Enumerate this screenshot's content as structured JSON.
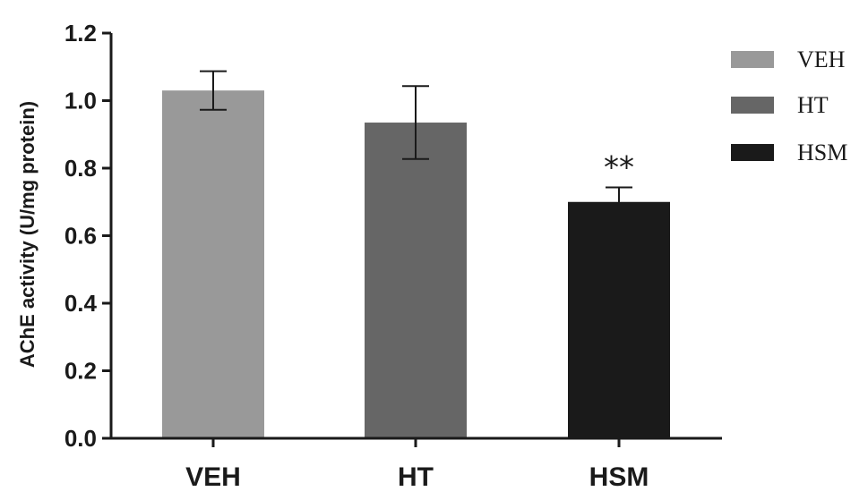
{
  "chart_data": {
    "type": "bar",
    "categories": [
      "VEH",
      "HT",
      "HSM"
    ],
    "values": [
      1.03,
      0.935,
      0.7
    ],
    "errors": [
      0.057,
      0.108,
      0.043
    ],
    "colors": [
      "#999999",
      "#666666",
      "#1a1a1a"
    ],
    "ylabel": "AChE activity (U/mg protein)",
    "xlabel": "",
    "ylim": [
      0,
      1.2
    ],
    "yticks": [
      "0.0",
      "0.2",
      "0.4",
      "0.6",
      "0.8",
      "1.0",
      "1.2"
    ],
    "legend": {
      "position": "top-right",
      "entries": [
        "VEH",
        "HT",
        "HSM"
      ]
    },
    "annotations": [
      {
        "category": "HSM",
        "text": "**"
      }
    ]
  }
}
